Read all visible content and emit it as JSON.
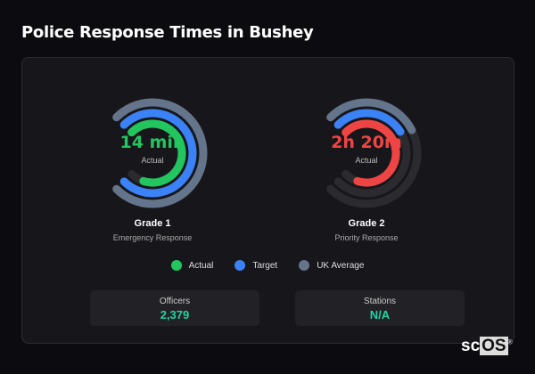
{
  "title": "Police Response Times in Bushey",
  "colors": {
    "actual_grade1": "#22c55e",
    "actual_grade2": "#ef4444",
    "target": "#3b82f6",
    "uk_average": "#64748b",
    "track": "#2a2a2f"
  },
  "chart_data": [
    {
      "type": "radial-bar",
      "name": "Grade 1",
      "description": "Emergency Response",
      "center_value": "14 min",
      "center_label": "Actual",
      "series": [
        {
          "name": "UK Average",
          "fraction": 1.0
        },
        {
          "name": "Target",
          "fraction": 1.0
        },
        {
          "name": "Actual",
          "fraction": 0.9
        }
      ]
    },
    {
      "type": "radial-bar",
      "name": "Grade 2",
      "description": "Priority Response",
      "center_value": "2h 20m",
      "center_label": "Actual",
      "series": [
        {
          "name": "UK Average",
          "fraction": 0.4
        },
        {
          "name": "Target",
          "fraction": 0.38
        },
        {
          "name": "Actual",
          "fraction": 0.9
        }
      ]
    }
  ],
  "legend": [
    {
      "label": "Actual",
      "color": "#22c55e"
    },
    {
      "label": "Target",
      "color": "#3b82f6"
    },
    {
      "label": "UK Average",
      "color": "#64748b"
    }
  ],
  "stats": [
    {
      "label": "Officers",
      "value": "2,379"
    },
    {
      "label": "Stations",
      "value": "N/A"
    }
  ],
  "logo": "scOS"
}
